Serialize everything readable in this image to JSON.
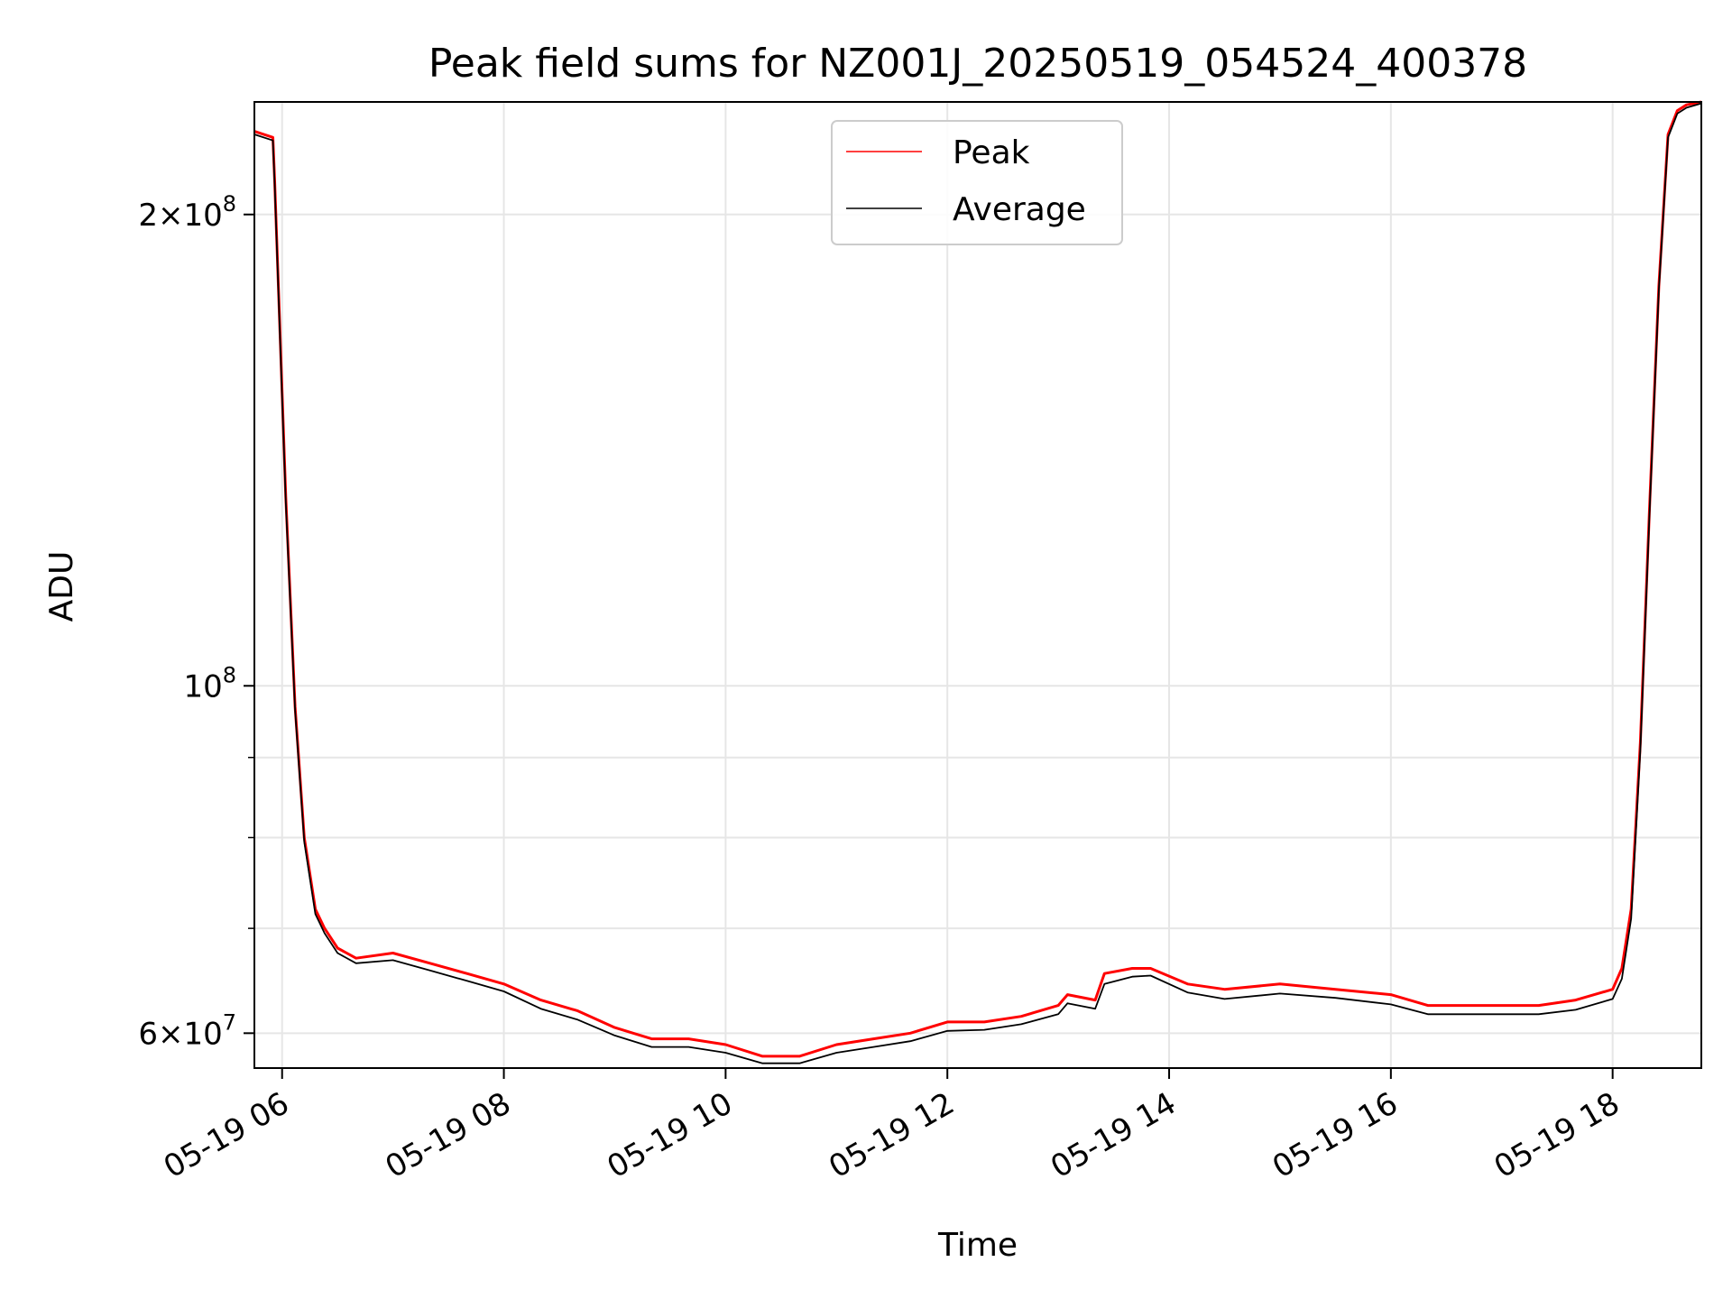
{
  "chart_data": {
    "type": "line",
    "title": "Peak field sums for NZ001J_20250519_054524_400378",
    "xlabel": "Time",
    "ylabel": "ADU",
    "y_scale": "log",
    "grid": true,
    "legend_position": "top-center",
    "xlim": [
      "2025-05-19 05:45",
      "2025-05-19 18:48"
    ],
    "ylim": [
      57000000,
      236000000
    ],
    "x_ticks": [
      "05-19 06",
      "05-19 08",
      "05-19 10",
      "05-19 12",
      "05-19 14",
      "05-19 16",
      "05-19 18"
    ],
    "y_ticks": [
      {
        "value": 200000000,
        "label_mantissa": "2",
        "label_times": "×",
        "label_base": "10",
        "label_exp": "8"
      },
      {
        "value": 100000000,
        "label_mantissa": "",
        "label_times": "",
        "label_base": "10",
        "label_exp": "8"
      },
      {
        "value": 60000000,
        "label_mantissa": "6",
        "label_times": "×",
        "label_base": "10",
        "label_exp": "7"
      }
    ],
    "y_minor_ticks": [
      70000000,
      80000000,
      90000000
    ],
    "series": [
      {
        "name": "Peak",
        "color": "#ff0000",
        "x": [
          "2025-05-19 05:45",
          "2025-05-19 05:55",
          "2025-05-19 05:56",
          "2025-05-19 06:02",
          "2025-05-19 06:07",
          "2025-05-19 06:12",
          "2025-05-19 06:18",
          "2025-05-19 06:23",
          "2025-05-19 06:30",
          "2025-05-19 06:40",
          "2025-05-19 07:00",
          "2025-05-19 07:20",
          "2025-05-19 07:40",
          "2025-05-19 08:00",
          "2025-05-19 08:20",
          "2025-05-19 08:40",
          "2025-05-19 09:00",
          "2025-05-19 09:20",
          "2025-05-19 09:40",
          "2025-05-19 10:00",
          "2025-05-19 10:20",
          "2025-05-19 10:40",
          "2025-05-19 11:00",
          "2025-05-19 11:20",
          "2025-05-19 11:40",
          "2025-05-19 12:00",
          "2025-05-19 12:20",
          "2025-05-19 12:40",
          "2025-05-19 13:00",
          "2025-05-19 13:05",
          "2025-05-19 13:20",
          "2025-05-19 13:25",
          "2025-05-19 13:40",
          "2025-05-19 13:50",
          "2025-05-19 14:10",
          "2025-05-19 14:30",
          "2025-05-19 15:00",
          "2025-05-19 15:30",
          "2025-05-19 16:00",
          "2025-05-19 16:20",
          "2025-05-19 16:40",
          "2025-05-19 17:00",
          "2025-05-19 17:20",
          "2025-05-19 17:40",
          "2025-05-19 18:00",
          "2025-05-19 18:05",
          "2025-05-19 18:10",
          "2025-05-19 18:15",
          "2025-05-19 18:20",
          "2025-05-19 18:25",
          "2025-05-19 18:30",
          "2025-05-19 18:35",
          "2025-05-19 18:40",
          "2025-05-19 18:48"
        ],
        "values": [
          226000000,
          224000000,
          210000000,
          132000000,
          97000000,
          80000000,
          72000000,
          70000000,
          68000000,
          67000000,
          67500000,
          66500000,
          65500000,
          64500000,
          63000000,
          62000000,
          60500000,
          59500000,
          59500000,
          59000000,
          58000000,
          58000000,
          59000000,
          59500000,
          60000000,
          61000000,
          61000000,
          61500000,
          62500000,
          63500000,
          63000000,
          65500000,
          66000000,
          66000000,
          64500000,
          64000000,
          64500000,
          64000000,
          63500000,
          62500000,
          62500000,
          62500000,
          62500000,
          63000000,
          64000000,
          66000000,
          72000000,
          92000000,
          130000000,
          180000000,
          225000000,
          233000000,
          235000000,
          236000000
        ]
      },
      {
        "name": "Average",
        "color": "#000000",
        "x": [
          "2025-05-19 05:45",
          "2025-05-19 05:55",
          "2025-05-19 05:56",
          "2025-05-19 06:02",
          "2025-05-19 06:07",
          "2025-05-19 06:12",
          "2025-05-19 06:18",
          "2025-05-19 06:23",
          "2025-05-19 06:30",
          "2025-05-19 06:40",
          "2025-05-19 07:00",
          "2025-05-19 07:20",
          "2025-05-19 07:40",
          "2025-05-19 08:00",
          "2025-05-19 08:20",
          "2025-05-19 08:40",
          "2025-05-19 09:00",
          "2025-05-19 09:20",
          "2025-05-19 09:40",
          "2025-05-19 10:00",
          "2025-05-19 10:20",
          "2025-05-19 10:40",
          "2025-05-19 11:00",
          "2025-05-19 11:20",
          "2025-05-19 11:40",
          "2025-05-19 12:00",
          "2025-05-19 12:20",
          "2025-05-19 12:40",
          "2025-05-19 13:00",
          "2025-05-19 13:05",
          "2025-05-19 13:20",
          "2025-05-19 13:25",
          "2025-05-19 13:40",
          "2025-05-19 13:50",
          "2025-05-19 14:10",
          "2025-05-19 14:30",
          "2025-05-19 15:00",
          "2025-05-19 15:30",
          "2025-05-19 16:00",
          "2025-05-19 16:20",
          "2025-05-19 16:40",
          "2025-05-19 17:00",
          "2025-05-19 17:20",
          "2025-05-19 17:40",
          "2025-05-19 18:00",
          "2025-05-19 18:05",
          "2025-05-19 18:10",
          "2025-05-19 18:15",
          "2025-05-19 18:20",
          "2025-05-19 18:25",
          "2025-05-19 18:30",
          "2025-05-19 18:35",
          "2025-05-19 18:40",
          "2025-05-19 18:48"
        ],
        "values": [
          225000000,
          223000000,
          209000000,
          131000000,
          96500000,
          79500000,
          71500000,
          69500000,
          67500000,
          66500000,
          66800000,
          65800000,
          64800000,
          63800000,
          62200000,
          61200000,
          59800000,
          58800000,
          58800000,
          58300000,
          57400000,
          57400000,
          58300000,
          58800000,
          59300000,
          60200000,
          60300000,
          60800000,
          61700000,
          62700000,
          62200000,
          64500000,
          65200000,
          65300000,
          63700000,
          63100000,
          63600000,
          63200000,
          62600000,
          61700000,
          61700000,
          61700000,
          61700000,
          62100000,
          63100000,
          65000000,
          71000000,
          91000000,
          129000000,
          179000000,
          224000000,
          232000000,
          234000000,
          235500000
        ]
      }
    ]
  }
}
